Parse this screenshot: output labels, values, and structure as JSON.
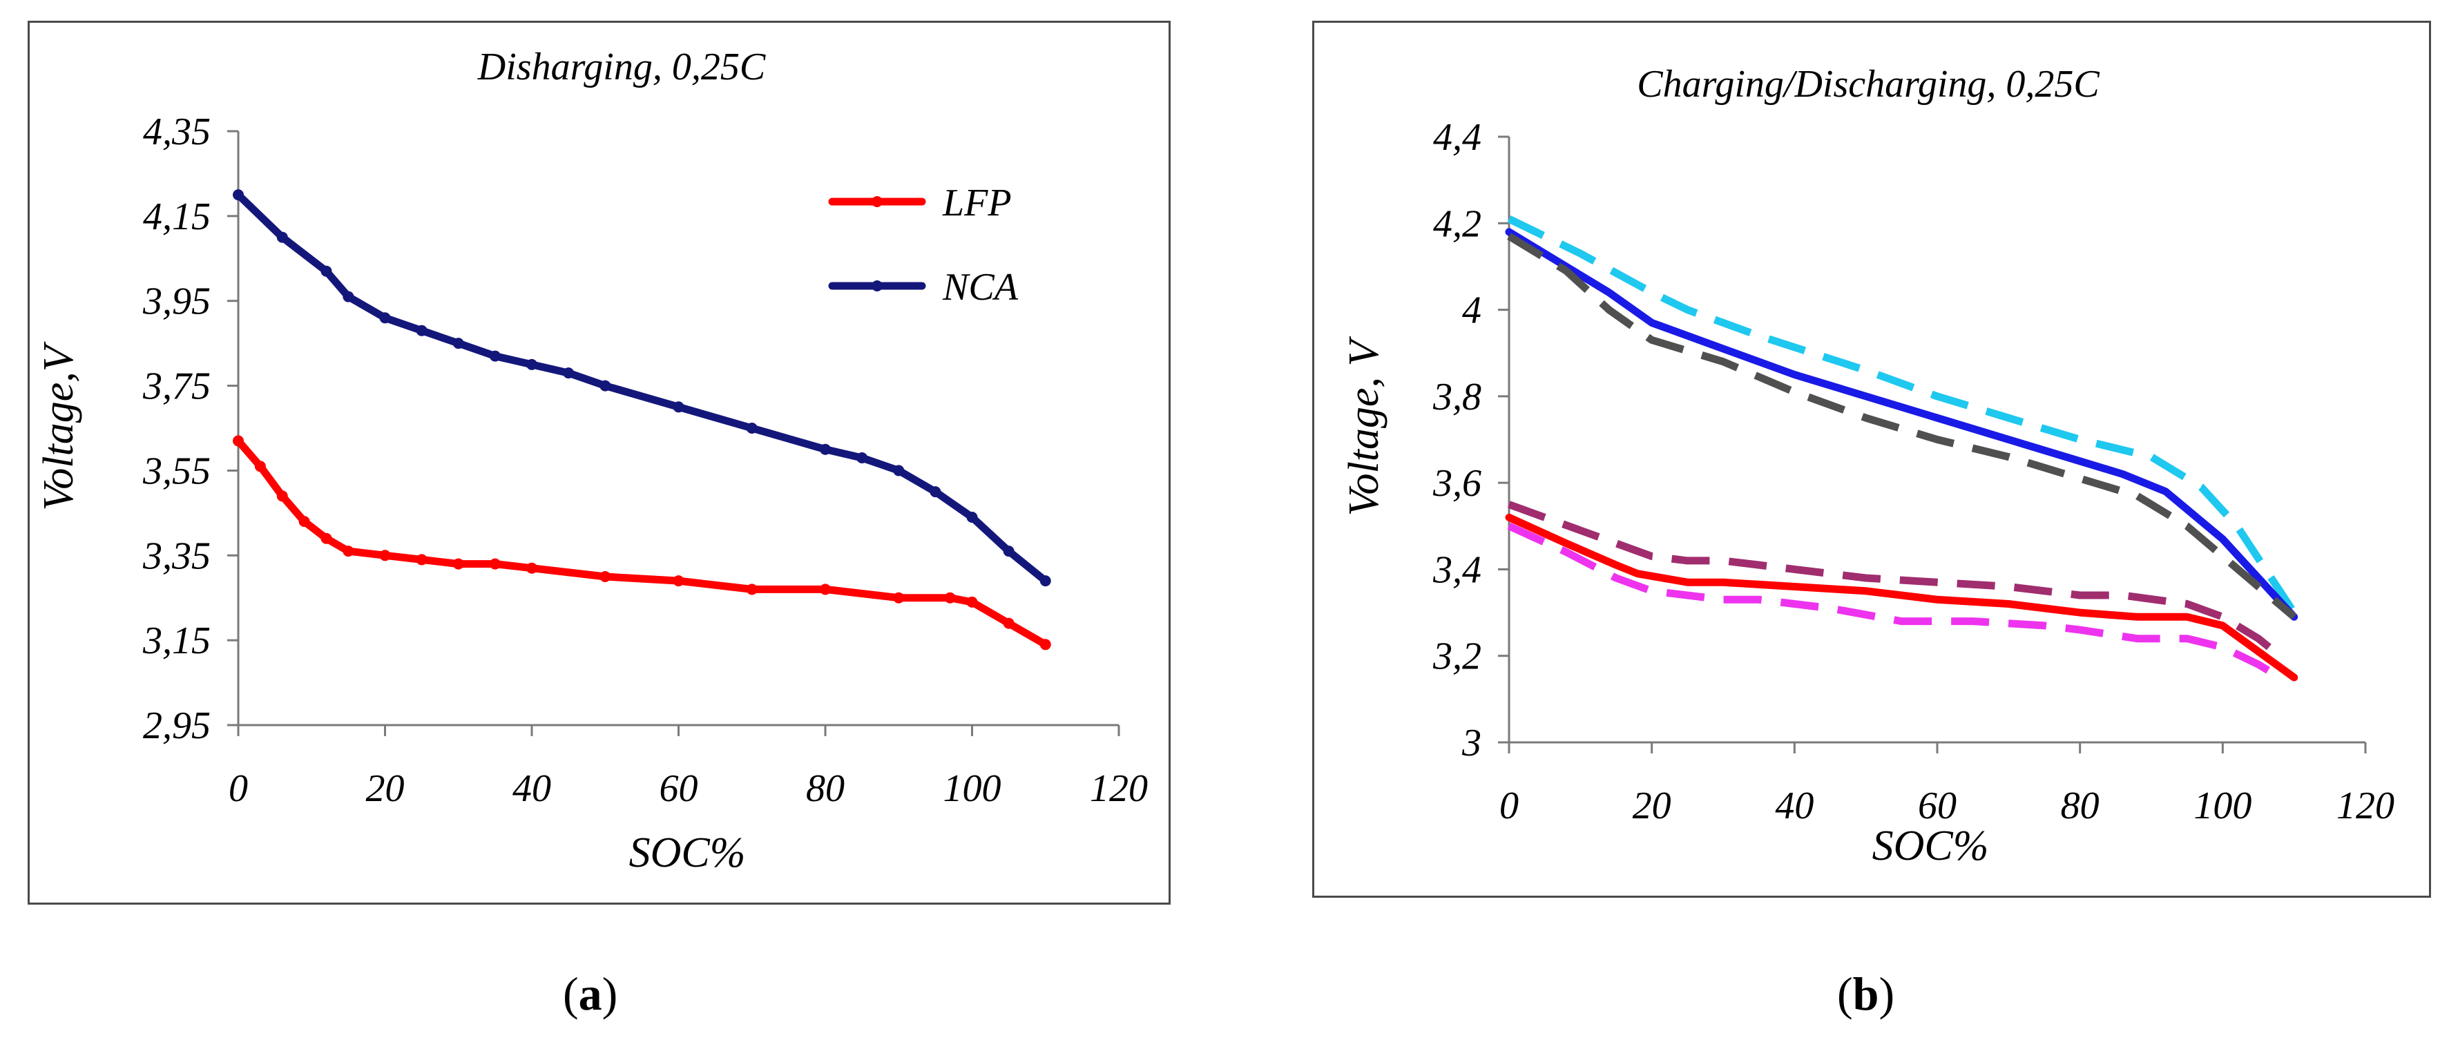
{
  "chart_data": [
    {
      "panel": "a",
      "type": "line",
      "title": "Disharging, 0,25C",
      "xlabel": "SOC%",
      "ylabel": "Voltage,V",
      "xlim": [
        0,
        120
      ],
      "ylim": [
        2.95,
        4.35
      ],
      "xticks": [
        0,
        20,
        40,
        60,
        80,
        100,
        120
      ],
      "yticks": [
        2.95,
        3.15,
        3.35,
        3.55,
        3.75,
        3.95,
        4.15,
        4.35
      ],
      "xtick_labels": [
        "0",
        "20",
        "40",
        "60",
        "80",
        "100",
        "120"
      ],
      "ytick_labels": [
        "2,95",
        "3,15",
        "3,35",
        "3,55",
        "3,75",
        "3,95",
        "4,15",
        "4,35"
      ],
      "legend_position": "top-right",
      "series": [
        {
          "name": "LFP",
          "color": "#ff0000",
          "dash": "solid",
          "markers": true,
          "x": [
            0,
            3,
            6,
            9,
            12,
            15,
            20,
            25,
            30,
            35,
            40,
            50,
            60,
            70,
            80,
            90,
            97,
            100,
            105,
            110
          ],
          "y": [
            3.62,
            3.56,
            3.49,
            3.43,
            3.39,
            3.36,
            3.35,
            3.34,
            3.33,
            3.33,
            3.32,
            3.3,
            3.29,
            3.27,
            3.27,
            3.25,
            3.25,
            3.24,
            3.19,
            3.14
          ]
        },
        {
          "name": "NCA",
          "color": "#14177a",
          "dash": "solid",
          "markers": true,
          "x": [
            0,
            6,
            12,
            15,
            20,
            25,
            30,
            35,
            40,
            45,
            50,
            60,
            70,
            80,
            85,
            90,
            95,
            100,
            105,
            110
          ],
          "y": [
            4.2,
            4.1,
            4.02,
            3.96,
            3.91,
            3.88,
            3.85,
            3.82,
            3.8,
            3.78,
            3.75,
            3.7,
            3.65,
            3.6,
            3.58,
            3.55,
            3.5,
            3.44,
            3.36,
            3.29
          ]
        }
      ]
    },
    {
      "panel": "b",
      "type": "line",
      "title": "Charging/Discharging, 0,25C",
      "xlabel": "SOC%",
      "ylabel": "Voltage, V",
      "xlim": [
        0,
        120
      ],
      "ylim": [
        3.0,
        4.4
      ],
      "xticks": [
        0,
        20,
        40,
        60,
        80,
        100,
        120
      ],
      "yticks": [
        3.0,
        3.2,
        3.4,
        3.6,
        3.8,
        4.0,
        4.2,
        4.4
      ],
      "xtick_labels": [
        "0",
        "20",
        "40",
        "60",
        "80",
        "100",
        "120"
      ],
      "ytick_labels": [
        "3",
        "3,2",
        "3,4",
        "3,6",
        "3,8",
        "4",
        "4,2",
        "4,4"
      ],
      "series": [
        {
          "name": "upper dashed (cyan)",
          "color": "#1ec8ef",
          "dash": "dashed",
          "x": [
            0,
            10,
            20,
            25,
            35,
            50,
            60,
            70,
            80,
            90,
            97,
            102,
            106,
            110
          ],
          "y": [
            4.21,
            4.13,
            4.04,
            4.0,
            3.94,
            3.86,
            3.8,
            3.75,
            3.7,
            3.66,
            3.59,
            3.5,
            3.4,
            3.3
          ]
        },
        {
          "name": "upper solid (blue)",
          "color": "#1a1ae6",
          "dash": "solid",
          "x": [
            0,
            8,
            14,
            20,
            30,
            40,
            50,
            60,
            70,
            80,
            86,
            92,
            100,
            105,
            110
          ],
          "y": [
            4.18,
            4.1,
            4.04,
            3.97,
            3.91,
            3.85,
            3.8,
            3.75,
            3.7,
            3.65,
            3.62,
            3.58,
            3.47,
            3.38,
            3.29
          ]
        },
        {
          "name": "upper dashed (gray)",
          "color": "#505050",
          "dash": "dashed",
          "x": [
            0,
            8,
            14,
            20,
            30,
            40,
            50,
            60,
            70,
            80,
            88,
            95,
            100,
            105,
            110
          ],
          "y": [
            4.17,
            4.09,
            4.0,
            3.93,
            3.88,
            3.81,
            3.75,
            3.7,
            3.66,
            3.61,
            3.57,
            3.5,
            3.43,
            3.36,
            3.29
          ]
        },
        {
          "name": "lower dashed (purple)",
          "color": "#a02d6e",
          "dash": "dashed",
          "x": [
            0,
            10,
            20,
            25,
            30,
            40,
            50,
            60,
            70,
            80,
            86,
            95,
            100,
            105,
            108
          ],
          "y": [
            3.55,
            3.49,
            3.43,
            3.42,
            3.42,
            3.4,
            3.38,
            3.37,
            3.36,
            3.34,
            3.34,
            3.32,
            3.29,
            3.24,
            3.2
          ]
        },
        {
          "name": "lower solid (red)",
          "color": "#ff0000",
          "dash": "solid",
          "x": [
            0,
            8,
            15,
            18,
            25,
            30,
            40,
            50,
            60,
            70,
            80,
            88,
            95,
            100,
            105,
            110
          ],
          "y": [
            3.52,
            3.46,
            3.41,
            3.39,
            3.37,
            3.37,
            3.36,
            3.35,
            3.33,
            3.32,
            3.3,
            3.29,
            3.29,
            3.27,
            3.21,
            3.15
          ]
        },
        {
          "name": "lower dashed (magenta)",
          "color": "#ee33ee",
          "dash": "dashed",
          "x": [
            0,
            8,
            15,
            20,
            30,
            35,
            45,
            55,
            65,
            75,
            80,
            88,
            95,
            100,
            105,
            108
          ],
          "y": [
            3.5,
            3.44,
            3.38,
            3.35,
            3.33,
            3.33,
            3.31,
            3.28,
            3.28,
            3.27,
            3.26,
            3.24,
            3.24,
            3.22,
            3.18,
            3.15
          ]
        }
      ]
    }
  ],
  "panel_labels": [
    {
      "open": "(",
      "letter": "a",
      "close": ")"
    },
    {
      "open": "(",
      "letter": "b",
      "close": ")"
    }
  ]
}
